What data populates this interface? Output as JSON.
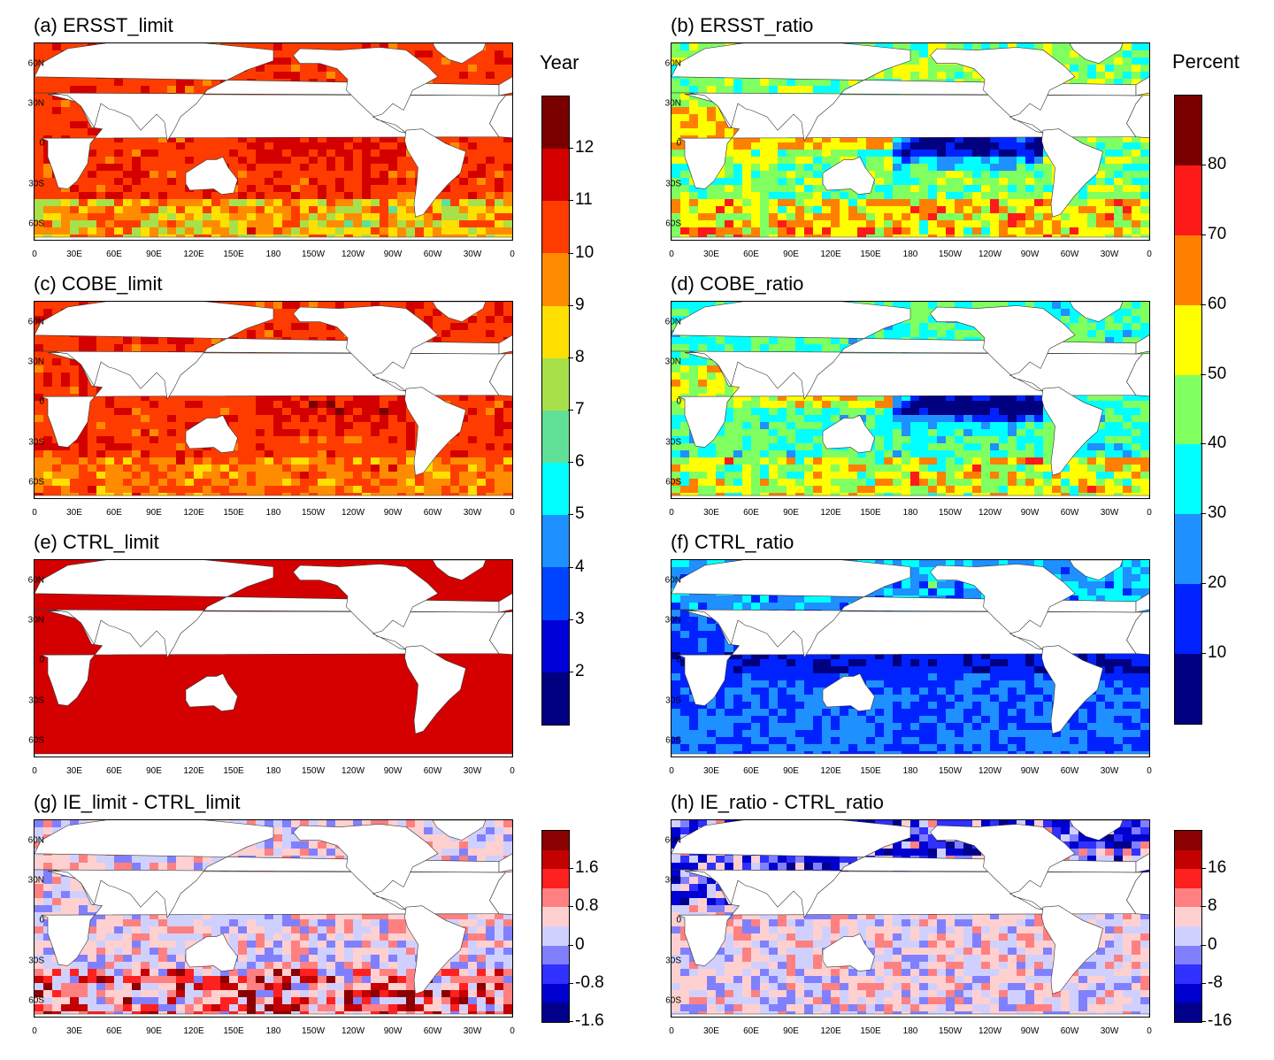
{
  "panels": [
    {
      "id": "a",
      "title": "(a) ERSST_limit",
      "scheme": "limit",
      "variant": "ersst",
      "col": 0,
      "row": 0
    },
    {
      "id": "b",
      "title": "(b) ERSST_ratio",
      "scheme": "ratio",
      "variant": "ersst",
      "col": 1,
      "row": 0
    },
    {
      "id": "c",
      "title": "(c) COBE_limit",
      "scheme": "limit",
      "variant": "cobe",
      "col": 0,
      "row": 1
    },
    {
      "id": "d",
      "title": "(d) COBE_ratio",
      "scheme": "ratio",
      "variant": "cobe",
      "col": 1,
      "row": 1
    },
    {
      "id": "e",
      "title": "(e) CTRL_limit",
      "scheme": "limit",
      "variant": "ctrl",
      "col": 0,
      "row": 2
    },
    {
      "id": "f",
      "title": "(f) CTRL_ratio",
      "scheme": "ratio",
      "variant": "ctrl",
      "col": 1,
      "row": 2
    },
    {
      "id": "g",
      "title": "(g) IE_limit - CTRL_limit",
      "scheme": "diff",
      "variant": "diffL",
      "col": 0,
      "row": 3
    },
    {
      "id": "h",
      "title": "(h) IE_ratio - CTRL_ratio",
      "scheme": "diff",
      "variant": "diffR",
      "col": 1,
      "row": 3
    }
  ],
  "lat_labels": [
    "60N",
    "30N",
    "0",
    "30S",
    "60S"
  ],
  "lon_labels": [
    "0",
    "30E",
    "60E",
    "90E",
    "120E",
    "150E",
    "180",
    "150W",
    "120W",
    "90W",
    "60W",
    "30W",
    "0"
  ],
  "colorbars": {
    "limit": {
      "title": "Year",
      "ticks": [
        "12",
        "11",
        "10",
        "9",
        "8",
        "7",
        "6",
        "5",
        "4",
        "3",
        "2"
      ],
      "colors": [
        "#7a0000",
        "#d40000",
        "#ff3c00",
        "#ff8c00",
        "#ffe000",
        "#a8e04a",
        "#60e096",
        "#00ffff",
        "#1e90ff",
        "#0044ff",
        "#0000d8",
        "#000080"
      ]
    },
    "ratio": {
      "title": "Percent",
      "ticks": [
        "80",
        "70",
        "60",
        "50",
        "40",
        "30",
        "20",
        "10"
      ],
      "colors": [
        "#7a0000",
        "#ff1a1a",
        "#ff8000",
        "#ffff00",
        "#80ff60",
        "#00ffff",
        "#1e90ff",
        "#0022ff",
        "#000080"
      ]
    },
    "diffL": {
      "ticks": [
        "1.6",
        "0.8",
        "0",
        "-0.8",
        "-1.6"
      ],
      "colors": [
        "#8b0000",
        "#c40000",
        "#ff2020",
        "#ff8080",
        "#ffd0d0",
        "#d0d0ff",
        "#8080ff",
        "#3030ff",
        "#0000d0",
        "#00008b"
      ]
    },
    "diffR": {
      "ticks": [
        "16",
        "8",
        "0",
        "-8",
        "-16"
      ],
      "colors": [
        "#8b0000",
        "#c40000",
        "#ff2020",
        "#ff8080",
        "#ffd0d0",
        "#d0d0ff",
        "#8080ff",
        "#3030ff",
        "#0000d0",
        "#00008b"
      ]
    }
  }
}
